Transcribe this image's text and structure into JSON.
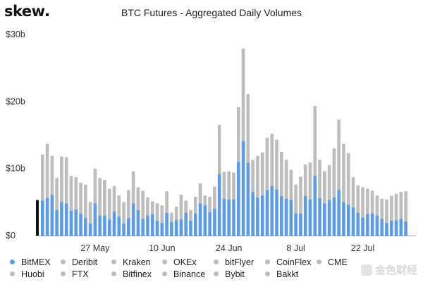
{
  "brand": {
    "logo_text": "skew"
  },
  "chart_data": {
    "type": "bar",
    "stacked": true,
    "title": "BTC Futures - Aggregated Daily Volumes",
    "y_ticks": [
      "$0",
      "$10b",
      "$20b",
      "$30b"
    ],
    "ylim": [
      0,
      30
    ],
    "x_ticks": [
      "27 May",
      "10 Jun",
      "24 Jun",
      "8 Jul",
      "22 Jul"
    ],
    "grid": false,
    "legend_position": "bottom",
    "series": [
      {
        "name": "BitMEX",
        "color": "#5b9bea",
        "values": [
          5.2,
          5.6,
          6.1,
          3.8,
          5.0,
          4.8,
          3.7,
          3.9,
          3.3,
          2.6,
          1.8,
          4.8,
          3.0,
          3.0,
          2.4,
          3.6,
          2.8,
          1.8,
          2.6,
          4.8,
          3.8,
          2.5,
          3.0,
          3.2,
          2.2,
          1.9,
          3.4,
          2.0,
          2.3,
          2.4,
          3.4,
          2.2,
          3.3,
          4.8,
          4.5,
          3.5,
          4.0,
          9.2,
          5.5,
          5.4,
          5.4,
          11.0,
          14.1,
          10.8,
          6.5,
          5.7,
          6.0,
          6.8,
          7.4,
          6.9,
          5.9,
          5.5,
          5.3,
          3.3,
          3.3,
          5.9,
          5.4,
          8.9,
          5.6,
          4.8,
          5.3,
          5.7,
          6.8,
          5.0,
          4.6,
          4.2,
          3.4,
          2.7,
          3.2,
          3.3,
          3.0,
          2.5,
          1.9,
          2.2,
          2.3,
          2.5,
          2.1
        ]
      },
      {
        "name": "Deribit",
        "color": "#bdbdbd",
        "values": [
          6.9,
          8.1,
          5.8,
          4.8,
          6.8,
          6.9,
          5.2,
          4.8,
          4.6,
          5.0,
          3.2,
          5.2,
          5.6,
          5.3,
          4.6,
          3.8,
          3.2,
          3.2,
          4.2,
          4.8,
          3.4,
          4.2,
          2.7,
          1.9,
          2.6,
          2.6,
          3.2,
          1.4,
          2.0,
          3.7,
          1.8,
          1.6,
          2.5,
          3.0,
          1.5,
          2.3,
          3.3,
          7.3,
          4.0,
          4.2,
          4.0,
          8.2,
          13.8,
          10.3,
          4.8,
          6.2,
          6.4,
          7.8,
          7.8,
          7.4,
          6.6,
          5.8,
          4.5,
          4.3,
          5.5,
          4.7,
          5.5,
          10.4,
          5.7,
          4.8,
          5.2,
          7.3,
          10.5,
          8.7,
          7.7,
          4.5,
          4.1,
          4.5,
          3.8,
          3.4,
          3.0,
          3.0,
          3.5,
          3.7,
          3.9,
          4.0,
          4.5
        ]
      },
      {
        "name": "Kraken",
        "color": "#bdbdbd",
        "values": []
      },
      {
        "name": "OKEx",
        "color": "#bdbdbd",
        "values": []
      },
      {
        "name": "bitFlyer",
        "color": "#bdbdbd",
        "values": []
      },
      {
        "name": "CoinFlex",
        "color": "#bdbdbd",
        "values": []
      },
      {
        "name": "CME",
        "color": "#bdbdbd",
        "values": []
      },
      {
        "name": "Huobi",
        "color": "#bdbdbd",
        "values": []
      },
      {
        "name": "FTX",
        "color": "#bdbdbd",
        "values": []
      },
      {
        "name": "Bitfinex",
        "color": "#bdbdbd",
        "values": []
      },
      {
        "name": "Binance",
        "color": "#bdbdbd",
        "values": []
      },
      {
        "name": "Bybit",
        "color": "#bdbdbd",
        "values": []
      },
      {
        "name": "Bakkt",
        "color": "#bdbdbd",
        "values": []
      }
    ],
    "first_bar_highlight": {
      "value": 5.3,
      "color": "#111111"
    }
  },
  "watermark": {
    "text": "金色财经"
  }
}
